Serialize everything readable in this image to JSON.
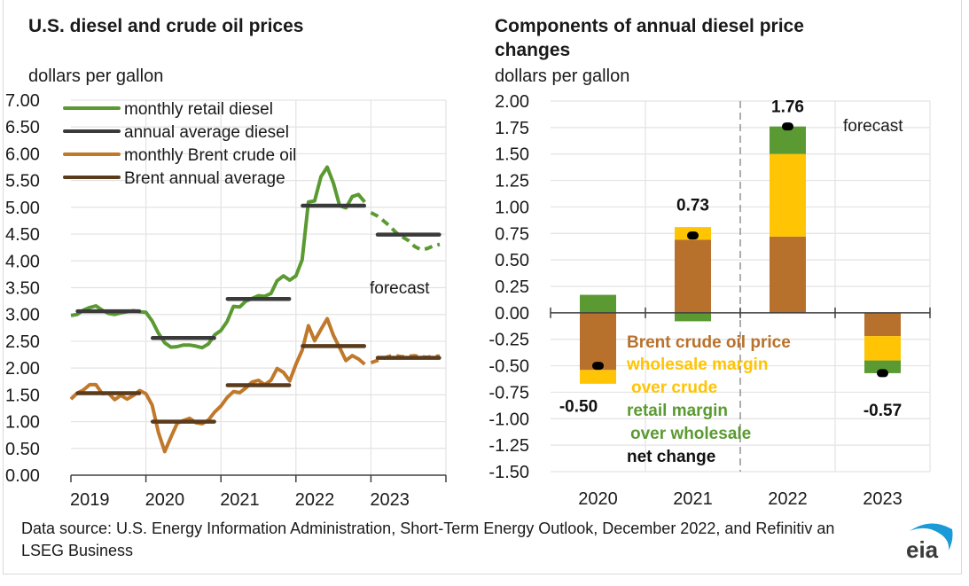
{
  "source_note": "Data source: U.S. Energy Information Administration, Short-Term Energy Outlook, December 2022, and Refinitiv an LSEG Business",
  "logo_text": "eia",
  "colors": {
    "retail_diesel": "#5b9a32",
    "annual_diesel": "#3a3a3a",
    "brent_monthly": "#c0782b",
    "brent_annual": "#5a3b1c",
    "brent_component": "#b8712c",
    "wholesale_component": "#ffc404",
    "retail_component": "#5b9a32",
    "net_change": "#000000",
    "eia_blue": "#1a9ad6"
  },
  "chart_data": [
    {
      "type": "line",
      "title": "U.S. diesel and crude oil prices",
      "ylabel": "dollars per gallon",
      "xlabel": "",
      "ylim": [
        0,
        7
      ],
      "yticks": [
        "0.00",
        "0.50",
        "1.00",
        "1.50",
        "2.00",
        "2.50",
        "3.00",
        "3.50",
        "4.00",
        "4.50",
        "5.00",
        "5.50",
        "6.00",
        "6.50",
        "7.00"
      ],
      "xlim": [
        2019,
        2024
      ],
      "xticks": [
        "2019",
        "2020",
        "2021",
        "2022",
        "2023"
      ],
      "grid": true,
      "legend_position": "top-left",
      "annotation": "forecast",
      "forecast_start": 2023,
      "series": [
        {
          "name": "monthly retail diesel",
          "style": "solid-forecast-dashed",
          "x": [
            2019.0,
            2019.083,
            2019.167,
            2019.25,
            2019.333,
            2019.417,
            2019.5,
            2019.583,
            2019.667,
            2019.75,
            2019.833,
            2019.917,
            2020.0,
            2020.083,
            2020.167,
            2020.25,
            2020.333,
            2020.417,
            2020.5,
            2020.583,
            2020.667,
            2020.75,
            2020.833,
            2020.917,
            2021.0,
            2021.083,
            2021.167,
            2021.25,
            2021.333,
            2021.417,
            2021.5,
            2021.583,
            2021.667,
            2021.75,
            2021.833,
            2021.917,
            2022.0,
            2022.083,
            2022.167,
            2022.25,
            2022.333,
            2022.417,
            2022.5,
            2022.583,
            2022.667,
            2022.75,
            2022.833,
            2022.917,
            2023.0,
            2023.083,
            2023.167,
            2023.25,
            2023.333,
            2023.417,
            2023.5,
            2023.583,
            2023.667,
            2023.75,
            2023.833,
            2023.917
          ],
          "values": [
            2.98,
            3.0,
            3.08,
            3.13,
            3.16,
            3.08,
            3.02,
            3.0,
            3.03,
            3.05,
            3.07,
            3.05,
            3.04,
            2.88,
            2.65,
            2.47,
            2.39,
            2.4,
            2.43,
            2.43,
            2.41,
            2.38,
            2.45,
            2.62,
            2.7,
            2.87,
            3.15,
            3.14,
            3.25,
            3.3,
            3.35,
            3.34,
            3.39,
            3.63,
            3.72,
            3.64,
            3.72,
            4.02,
            5.1,
            5.12,
            5.57,
            5.75,
            5.45,
            5.03,
            4.99,
            5.2,
            5.24,
            5.1,
            4.9,
            4.84,
            4.75,
            4.65,
            4.53,
            4.45,
            4.38,
            4.27,
            4.21,
            4.23,
            4.28,
            4.31
          ]
        },
        {
          "name": "annual average diesel",
          "style": "step",
          "segments": [
            {
              "year": 2019,
              "value": 3.06
            },
            {
              "year": 2020,
              "value": 2.56
            },
            {
              "year": 2021,
              "value": 3.29
            },
            {
              "year": 2022,
              "value": 5.03
            },
            {
              "year": 2023,
              "value": 4.49
            }
          ]
        },
        {
          "name": "monthly Brent crude oil",
          "style": "solid-forecast-dashed",
          "x": [
            2019.0,
            2019.083,
            2019.167,
            2019.25,
            2019.333,
            2019.417,
            2019.5,
            2019.583,
            2019.667,
            2019.75,
            2019.833,
            2019.917,
            2020.0,
            2020.083,
            2020.167,
            2020.25,
            2020.333,
            2020.417,
            2020.5,
            2020.583,
            2020.667,
            2020.75,
            2020.833,
            2020.917,
            2021.0,
            2021.083,
            2021.167,
            2021.25,
            2021.333,
            2021.417,
            2021.5,
            2021.583,
            2021.667,
            2021.75,
            2021.833,
            2021.917,
            2022.0,
            2022.083,
            2022.167,
            2022.25,
            2022.333,
            2022.417,
            2022.5,
            2022.583,
            2022.667,
            2022.75,
            2022.833,
            2022.917,
            2023.0,
            2023.083,
            2023.167,
            2023.25,
            2023.333,
            2023.417,
            2023.5,
            2023.583,
            2023.667,
            2023.75,
            2023.833,
            2023.917
          ],
          "values": [
            1.42,
            1.53,
            1.59,
            1.69,
            1.69,
            1.52,
            1.53,
            1.41,
            1.49,
            1.42,
            1.49,
            1.58,
            1.52,
            1.31,
            0.8,
            0.44,
            0.71,
            0.97,
            1.02,
            1.06,
            0.98,
            0.96,
            1.03,
            1.18,
            1.29,
            1.45,
            1.56,
            1.54,
            1.63,
            1.74,
            1.77,
            1.69,
            1.77,
            1.99,
            1.92,
            1.76,
            2.07,
            2.33,
            2.79,
            2.51,
            2.72,
            2.92,
            2.61,
            2.38,
            2.14,
            2.23,
            2.17,
            2.07,
            2.1,
            2.14,
            2.18,
            2.22,
            2.23,
            2.21,
            2.22,
            2.23,
            2.21,
            2.2,
            2.22,
            2.22
          ]
        },
        {
          "name": "Brent annual average",
          "style": "step",
          "segments": [
            {
              "year": 2019,
              "value": 1.53
            },
            {
              "year": 2020,
              "value": 1.0
            },
            {
              "year": 2021,
              "value": 1.68
            },
            {
              "year": 2022,
              "value": 2.41
            },
            {
              "year": 2023,
              "value": 2.19
            }
          ]
        }
      ]
    },
    {
      "type": "bar",
      "stacked": true,
      "title": "Components of annual diesel price changes",
      "ylabel": "dollars per gallon",
      "xlabel": "",
      "ylim": [
        -1.5,
        2.0
      ],
      "yticks": [
        "-1.50",
        "-1.25",
        "-1.00",
        "-0.75",
        "-0.50",
        "-0.25",
        "0.00",
        "0.25",
        "0.50",
        "0.75",
        "1.00",
        "1.25",
        "1.50",
        "1.75",
        "2.00"
      ],
      "categories": [
        "2020",
        "2021",
        "2022",
        "2023"
      ],
      "grid": true,
      "annotation": "forecast",
      "forecast_divider_between": [
        "2021",
        "2022"
      ],
      "legend_position": "center",
      "legend_labels": {
        "brent": "Brent crude oil price",
        "wholesale_1": "wholesale margin",
        "wholesale_2": "over crude",
        "retail_1": "retail margin",
        "retail_2": "over wholesale",
        "net": "net change"
      },
      "series": [
        {
          "name": "Brent crude oil price",
          "values": [
            -0.54,
            0.69,
            0.72,
            -0.22
          ]
        },
        {
          "name": "wholesale margin over crude",
          "values": [
            -0.13,
            0.12,
            0.78,
            -0.23
          ]
        },
        {
          "name": "retail margin over wholesale",
          "values": [
            0.17,
            -0.08,
            0.26,
            -0.12
          ]
        }
      ],
      "net_change": {
        "name": "net change",
        "values": [
          -0.5,
          0.73,
          1.76,
          -0.57
        ],
        "labels": [
          "-0.50",
          "0.73",
          "1.76",
          "-0.57"
        ]
      }
    }
  ]
}
